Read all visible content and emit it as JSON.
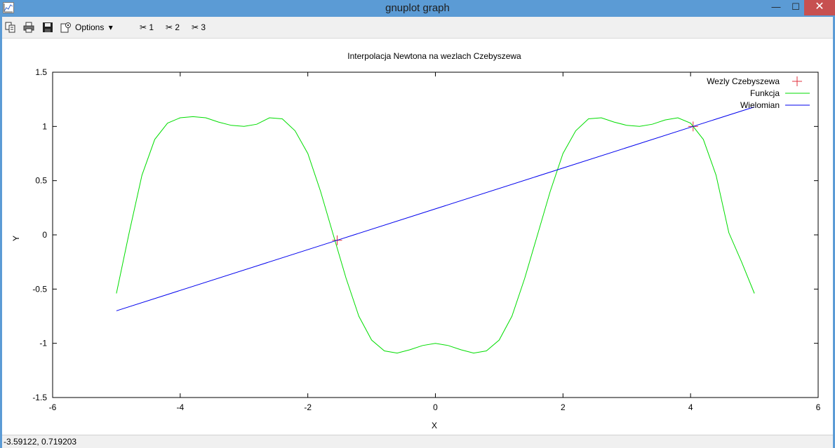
{
  "window": {
    "title": "gnuplot graph",
    "minimize_glyph": "—",
    "maximize_glyph": "☐",
    "close_glyph": "✕",
    "app_icon": "gnuplot-graph-icon"
  },
  "toolbar": {
    "copy_icon": "copy-icon",
    "print_icon": "print-icon",
    "save_icon": "save-icon",
    "options_icon": "options-icon",
    "options_label": "Options",
    "options_arrow": "▾",
    "ruler_items": [
      {
        "icon": "scissors-icon",
        "label": "1"
      },
      {
        "icon": "scissors-icon",
        "label": "2"
      },
      {
        "icon": "scissors-icon",
        "label": "3"
      }
    ]
  },
  "status": {
    "coordinates": "-3.59122,  0.719203"
  },
  "chart_data": {
    "type": "line",
    "title": "Interpolacja Newtona na wezlach Czebyszewa",
    "xlabel": "X",
    "ylabel": "Y",
    "xlim": [
      -6,
      6
    ],
    "ylim": [
      -1.5,
      1.5
    ],
    "xticks": [
      "-6",
      "-4",
      "-2",
      "0",
      "2",
      "4",
      "6"
    ],
    "yticks": [
      "-1.5",
      "-1",
      "-0.5",
      "0",
      "0.5",
      "1",
      "1.5"
    ],
    "grid": false,
    "legend_position": "top-right",
    "series": [
      {
        "name": "Wezly Czebyszewa",
        "style": "points",
        "marker": "plus",
        "color": "#e0303e",
        "points": [
          [
            -1.54,
            -0.05
          ],
          [
            4.04,
            1.0
          ]
        ]
      },
      {
        "name": "Funkcja",
        "style": "line",
        "color": "#00dd00",
        "points": [
          [
            -5.0,
            -0.54
          ],
          [
            -4.8,
            0.02
          ],
          [
            -4.6,
            0.55
          ],
          [
            -4.4,
            0.88
          ],
          [
            -4.2,
            1.03
          ],
          [
            -4.0,
            1.08
          ],
          [
            -3.8,
            1.09
          ],
          [
            -3.6,
            1.08
          ],
          [
            -3.4,
            1.04
          ],
          [
            -3.2,
            1.01
          ],
          [
            -3.0,
            1.0
          ],
          [
            -2.8,
            1.02
          ],
          [
            -2.6,
            1.08
          ],
          [
            -2.4,
            1.07
          ],
          [
            -2.2,
            0.96
          ],
          [
            -2.0,
            0.75
          ],
          [
            -1.8,
            0.4
          ],
          [
            -1.6,
            0.0
          ],
          [
            -1.4,
            -0.4
          ],
          [
            -1.2,
            -0.75
          ],
          [
            -1.0,
            -0.97
          ],
          [
            -0.8,
            -1.07
          ],
          [
            -0.6,
            -1.09
          ],
          [
            -0.4,
            -1.06
          ],
          [
            -0.2,
            -1.02
          ],
          [
            0.0,
            -1.0
          ],
          [
            0.2,
            -1.02
          ],
          [
            0.4,
            -1.06
          ],
          [
            0.6,
            -1.09
          ],
          [
            0.8,
            -1.07
          ],
          [
            1.0,
            -0.97
          ],
          [
            1.2,
            -0.75
          ],
          [
            1.4,
            -0.4
          ],
          [
            1.6,
            0.0
          ],
          [
            1.8,
            0.4
          ],
          [
            2.0,
            0.75
          ],
          [
            2.2,
            0.96
          ],
          [
            2.4,
            1.07
          ],
          [
            2.6,
            1.08
          ],
          [
            2.8,
            1.04
          ],
          [
            3.0,
            1.01
          ],
          [
            3.2,
            1.0
          ],
          [
            3.4,
            1.02
          ],
          [
            3.6,
            1.06
          ],
          [
            3.8,
            1.08
          ],
          [
            4.0,
            1.03
          ],
          [
            4.2,
            0.88
          ],
          [
            4.4,
            0.55
          ],
          [
            4.6,
            0.02
          ],
          [
            4.8,
            -0.25
          ],
          [
            5.0,
            -0.54
          ]
        ]
      },
      {
        "name": "Wielomian",
        "style": "line",
        "color": "#0000ee",
        "points": [
          [
            -5.0,
            -0.7
          ],
          [
            -1.54,
            -0.05
          ],
          [
            4.04,
            1.0
          ],
          [
            5.0,
            1.18
          ]
        ]
      }
    ]
  }
}
